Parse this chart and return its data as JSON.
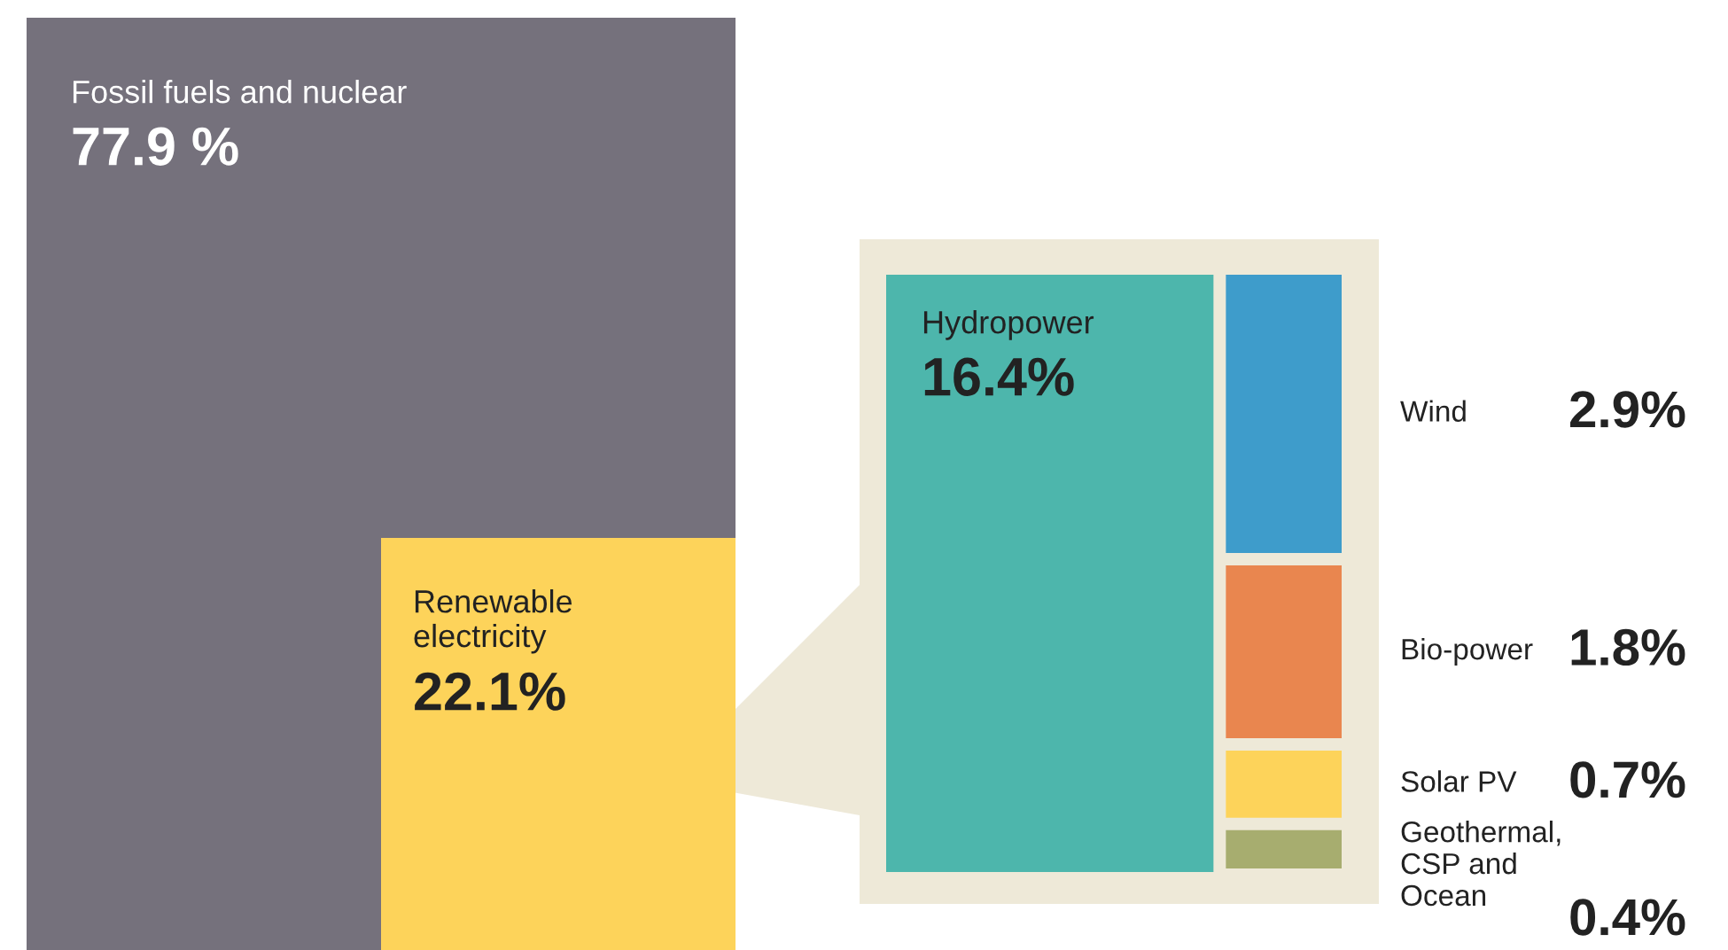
{
  "chart_data": {
    "type": "other",
    "categories": [
      "Fossil fuels and nuclear",
      "Renewable\nelectricity",
      "Hydropower",
      "Wind",
      "Bio-power",
      "Solar PV",
      "Geothermal,\nCSP and\nOcean"
    ],
    "values": [
      77.9,
      22.1,
      16.4,
      2.9,
      1.8,
      0.7,
      0.4
    ],
    "value_labels": [
      "77.9 %",
      "22.1%",
      "16.4%",
      "2.9%",
      "1.8%",
      "0.7%",
      "0.4%"
    ],
    "colors": [
      "#75717c",
      "#fdd35a",
      "#4db6ac",
      "#3e9ccb",
      "#e9864f",
      "#fdd35a",
      "#a7ad6f"
    ]
  }
}
